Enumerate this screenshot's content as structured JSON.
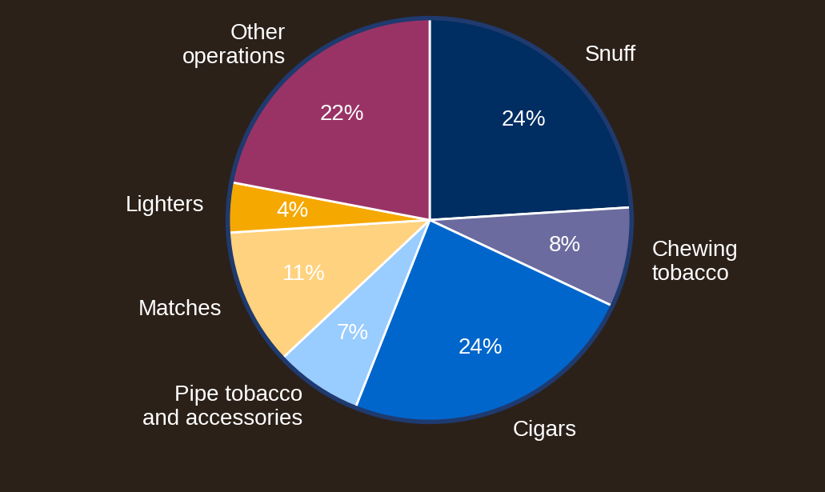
{
  "chart_data": {
    "type": "pie",
    "categories": [
      "Snuff",
      "Chewing\ntobacco",
      "Cigars",
      "Pipe tobacco\nand accessories",
      "Matches",
      "Lighters",
      "Other\noperations"
    ],
    "values": [
      24,
      8,
      24,
      7,
      11,
      4,
      22
    ],
    "value_labels": [
      "24%",
      "8%",
      "24%",
      "7%",
      "11%",
      "4%",
      "22%"
    ],
    "data_labels": true,
    "colors": [
      "#002d62",
      "#6b6b9f",
      "#0066cc",
      "#99ccff",
      "#ffd27f",
      "#f5a800",
      "#993366"
    ]
  }
}
